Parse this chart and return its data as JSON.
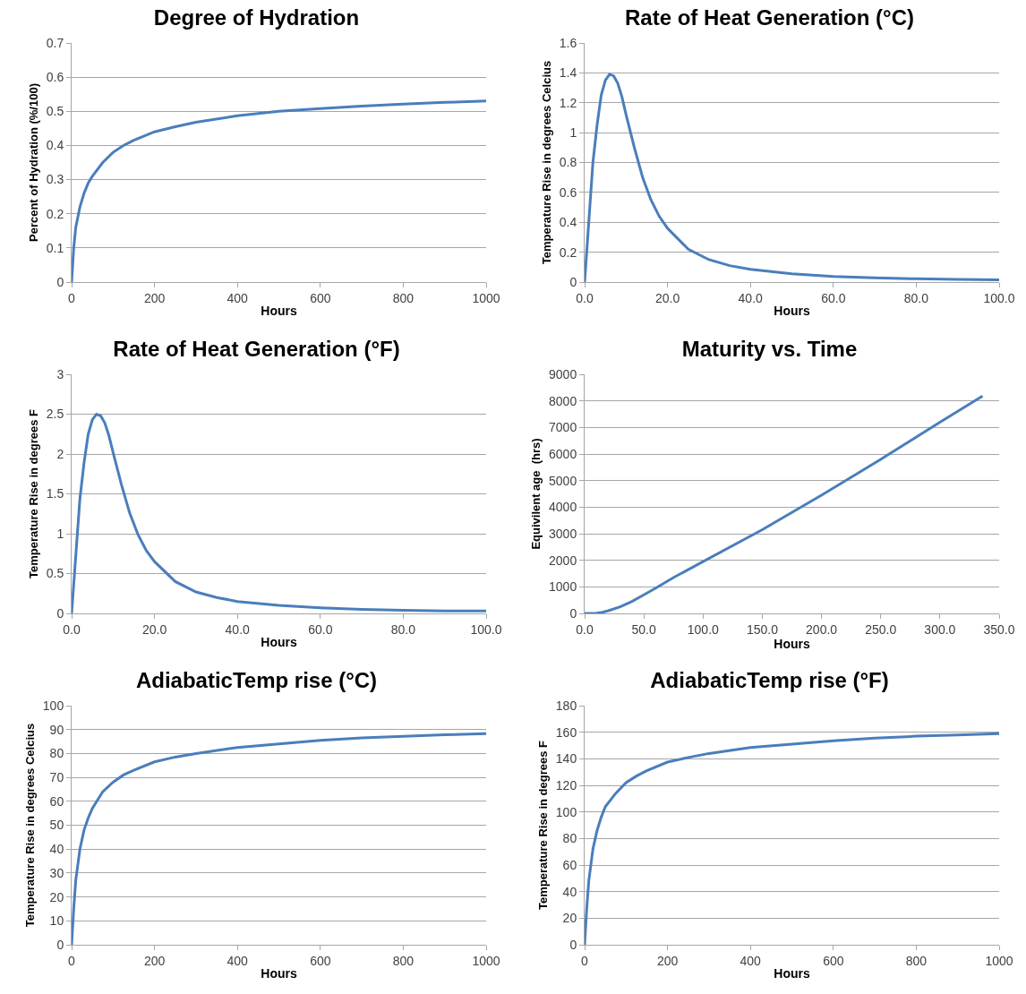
{
  "chart_data": [
    {
      "type": "line",
      "title": "Degree of Hydration",
      "xlabel": "Hours",
      "ylabel": "Percent of Hydration (%/100)",
      "grid": "y",
      "color": "#4a7ebb",
      "x": [
        0,
        5,
        10,
        20,
        30,
        40,
        50,
        75,
        100,
        125,
        150,
        200,
        250,
        300,
        400,
        500,
        600,
        700,
        800,
        900,
        1000
      ],
      "values": [
        0,
        0.1,
        0.16,
        0.22,
        0.26,
        0.29,
        0.31,
        0.35,
        0.38,
        0.4,
        0.415,
        0.44,
        0.455,
        0.468,
        0.487,
        0.5,
        0.508,
        0.515,
        0.521,
        0.526,
        0.53
      ],
      "xlim": [
        0,
        1000
      ],
      "xticks": [
        0,
        200,
        400,
        600,
        800,
        1000
      ],
      "ylim": [
        0,
        0.7
      ],
      "yticks": [
        0,
        0.1,
        0.2,
        0.3,
        0.4,
        0.5,
        0.6,
        0.7
      ]
    },
    {
      "type": "line",
      "title": "Rate of Heat Generation (°C)",
      "xlabel": "Hours",
      "ylabel": "Temperature Rise in degrees Celcius",
      "grid": "y",
      "color": "#4a7ebb",
      "x": [
        0,
        1,
        2,
        3,
        4,
        5,
        6,
        7,
        8,
        9,
        10,
        12,
        14,
        16,
        18,
        20,
        25,
        30,
        35,
        40,
        50,
        60,
        70,
        80,
        90,
        100
      ],
      "values": [
        0,
        0.4,
        0.8,
        1.05,
        1.25,
        1.35,
        1.39,
        1.38,
        1.33,
        1.24,
        1.12,
        0.9,
        0.7,
        0.55,
        0.44,
        0.36,
        0.22,
        0.15,
        0.11,
        0.085,
        0.055,
        0.038,
        0.028,
        0.022,
        0.018,
        0.015
      ],
      "xlim": [
        0,
        100
      ],
      "xticks": [
        {
          "value": 0,
          "label": "0.0"
        },
        {
          "value": 20,
          "label": "20.0"
        },
        {
          "value": 40,
          "label": "40.0"
        },
        {
          "value": 60,
          "label": "60.0"
        },
        {
          "value": 80,
          "label": "80.0"
        },
        {
          "value": 100,
          "label": "100.0"
        }
      ],
      "ylim": [
        0,
        1.6
      ],
      "yticks": [
        0,
        0.2,
        0.4,
        0.6,
        0.8,
        1,
        1.2,
        1.4,
        1.6
      ]
    },
    {
      "type": "line",
      "title": "Rate of Heat Generation (°F)",
      "xlabel": "Hours",
      "ylabel": "Temperature Rise in degrees F",
      "grid": "y",
      "color": "#4a7ebb",
      "x": [
        0,
        1,
        2,
        3,
        4,
        5,
        6,
        7,
        8,
        9,
        10,
        12,
        14,
        16,
        18,
        20,
        25,
        30,
        35,
        40,
        50,
        60,
        70,
        80,
        90,
        100
      ],
      "values": [
        0,
        0.72,
        1.44,
        1.89,
        2.25,
        2.43,
        2.5,
        2.48,
        2.39,
        2.23,
        2.02,
        1.62,
        1.26,
        0.99,
        0.79,
        0.65,
        0.4,
        0.27,
        0.2,
        0.15,
        0.1,
        0.07,
        0.05,
        0.04,
        0.03,
        0.03
      ],
      "xlim": [
        0,
        100
      ],
      "xticks": [
        {
          "value": 0,
          "label": "0.0"
        },
        {
          "value": 20,
          "label": "20.0"
        },
        {
          "value": 40,
          "label": "40.0"
        },
        {
          "value": 60,
          "label": "60.0"
        },
        {
          "value": 80,
          "label": "80.0"
        },
        {
          "value": 100,
          "label": "100.0"
        }
      ],
      "ylim": [
        0,
        3
      ],
      "yticks": [
        0,
        0.5,
        1,
        1.5,
        2,
        2.5,
        3
      ]
    },
    {
      "type": "line",
      "title": "Maturity vs. Time",
      "xlabel": "Hours",
      "ylabel": "Equivilent age  (hrs)",
      "grid": "y",
      "color": "#4a7ebb",
      "x": [
        0,
        10,
        15,
        20,
        30,
        40,
        50,
        60,
        75,
        100,
        150,
        200,
        250,
        300,
        336
      ],
      "values": [
        0,
        10,
        40,
        100,
        250,
        450,
        700,
        950,
        1350,
        1950,
        3150,
        4450,
        5800,
        7200,
        8180
      ],
      "xlim": [
        0,
        350
      ],
      "xticks": [
        {
          "value": 0,
          "label": "0.0"
        },
        {
          "value": 50,
          "label": "50.0"
        },
        {
          "value": 100,
          "label": "100.0"
        },
        {
          "value": 150,
          "label": "150.0"
        },
        {
          "value": 200,
          "label": "200.0"
        },
        {
          "value": 250,
          "label": "250.0"
        },
        {
          "value": 300,
          "label": "300.0"
        },
        {
          "value": 350,
          "label": "350.0"
        }
      ],
      "ylim": [
        0,
        9000
      ],
      "yticks": [
        0,
        1000,
        2000,
        3000,
        4000,
        5000,
        6000,
        7000,
        8000,
        9000
      ]
    },
    {
      "type": "line",
      "title": "AdiabaticTemp rise (°C)",
      "xlabel": "Hours",
      "ylabel": "Temperature Rise in degrees Celcius",
      "grid": "y",
      "color": "#4a7ebb",
      "x": [
        0,
        5,
        10,
        20,
        30,
        40,
        50,
        75,
        100,
        125,
        150,
        200,
        250,
        300,
        400,
        500,
        600,
        700,
        800,
        900,
        1000
      ],
      "values": [
        0,
        15,
        27,
        40,
        48,
        53,
        57,
        64,
        68,
        71,
        73,
        76.5,
        78.5,
        80,
        82.5,
        84,
        85.5,
        86.5,
        87.2,
        87.8,
        88.3
      ],
      "xlim": [
        0,
        1000
      ],
      "xticks": [
        0,
        200,
        400,
        600,
        800,
        1000
      ],
      "ylim": [
        0,
        100
      ],
      "yticks": [
        0,
        10,
        20,
        30,
        40,
        50,
        60,
        70,
        80,
        90,
        100
      ]
    },
    {
      "type": "line",
      "title": "AdiabaticTemp rise (°F)",
      "xlabel": "Hours",
      "ylabel": "Temperature Rise in degrees F",
      "grid": "y",
      "color": "#4a7ebb",
      "x": [
        0,
        5,
        10,
        20,
        30,
        40,
        50,
        75,
        100,
        125,
        150,
        200,
        250,
        300,
        400,
        500,
        600,
        700,
        800,
        900,
        1000
      ],
      "values": [
        0,
        27,
        48,
        72,
        86,
        96,
        104,
        114,
        122,
        127,
        131,
        137.5,
        141,
        144,
        148.5,
        151,
        153.5,
        155.5,
        157,
        158,
        159
      ],
      "xlim": [
        0,
        1000
      ],
      "xticks": [
        0,
        200,
        400,
        600,
        800,
        1000
      ],
      "ylim": [
        0,
        180
      ],
      "yticks": [
        0,
        20,
        40,
        60,
        80,
        100,
        120,
        140,
        160,
        180
      ]
    }
  ]
}
